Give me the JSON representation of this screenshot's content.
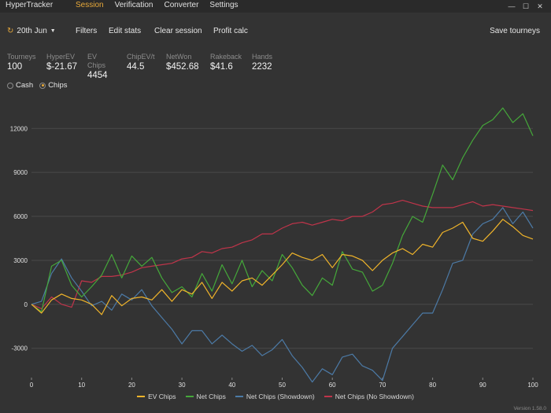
{
  "app": {
    "name": "HyperTracker",
    "version": "Version 1.58.0"
  },
  "menu": [
    {
      "label": "Session",
      "active": true
    },
    {
      "label": "Verification",
      "active": false
    },
    {
      "label": "Converter",
      "active": false
    },
    {
      "label": "Settings",
      "active": false
    }
  ],
  "window_controls": {
    "minimize": "—",
    "maximize": "☐",
    "close": "✕"
  },
  "toolbar": {
    "date": "20th Jun",
    "filters": "Filters",
    "edit_stats": "Edit stats",
    "clear_session": "Clear session",
    "profit_calc": "Profit calc",
    "save_tourneys": "Save tourneys"
  },
  "stats": [
    {
      "label": "Tourneys",
      "value": "100"
    },
    {
      "label": "HyperEV",
      "value": "$-21.67"
    },
    {
      "label": "EV Chips",
      "value": "4454"
    },
    {
      "label": "ChipEV/t",
      "value": "44.5"
    },
    {
      "label": "NetWon",
      "value": "$452.68"
    },
    {
      "label": "Rakeback",
      "value": "$41.6"
    },
    {
      "label": "Hands",
      "value": "2232"
    }
  ],
  "mode": {
    "cash_label": "Cash",
    "chips_label": "Chips",
    "selected": "Chips"
  },
  "icons": {
    "refresh": "refresh-icon",
    "dropdown": "caret-down-icon"
  },
  "chart_data": {
    "type": "line",
    "xlim": [
      0,
      100
    ],
    "ylim": [
      -5000,
      14000
    ],
    "x_ticks": [
      0,
      10,
      20,
      30,
      40,
      50,
      60,
      70,
      80,
      90,
      100
    ],
    "y_ticks": [
      -3000,
      0,
      3000,
      6000,
      9000,
      12000
    ],
    "grid": "horizontal",
    "legend_position": "bottom",
    "series": [
      {
        "name": "EV Chips",
        "color": "#f0b42a",
        "x": [
          0,
          2,
          4,
          6,
          8,
          10,
          12,
          14,
          16,
          18,
          20,
          22,
          24,
          26,
          28,
          30,
          32,
          34,
          36,
          38,
          40,
          42,
          44,
          46,
          48,
          50,
          52,
          54,
          56,
          58,
          60,
          62,
          64,
          66,
          68,
          70,
          72,
          74,
          76,
          78,
          80,
          82,
          84,
          86,
          88,
          90,
          92,
          94,
          96,
          98,
          100
        ],
        "y": [
          0,
          -600,
          300,
          700,
          400,
          300,
          0,
          -700,
          600,
          -100,
          400,
          500,
          300,
          1000,
          200,
          1000,
          700,
          1500,
          400,
          1500,
          900,
          1600,
          1800,
          1300,
          2000,
          2700,
          3500,
          3200,
          3000,
          3400,
          2500,
          3400,
          3300,
          3000,
          2300,
          3000,
          3500,
          3800,
          3400,
          4100,
          3900,
          4900,
          5200,
          5600,
          4500,
          4300,
          5000,
          5800,
          5300,
          4700,
          4454
        ]
      },
      {
        "name": "Net Chips",
        "color": "#45a83a",
        "x": [
          0,
          2,
          4,
          6,
          8,
          10,
          12,
          14,
          16,
          18,
          20,
          22,
          24,
          26,
          28,
          30,
          32,
          34,
          36,
          38,
          40,
          42,
          44,
          46,
          48,
          50,
          52,
          54,
          56,
          58,
          60,
          62,
          64,
          66,
          68,
          70,
          72,
          74,
          76,
          78,
          80,
          82,
          84,
          86,
          88,
          90,
          92,
          94,
          96,
          98,
          100
        ],
        "y": [
          0,
          -500,
          2600,
          3000,
          1300,
          500,
          1200,
          2000,
          3400,
          1800,
          3300,
          2600,
          3200,
          1800,
          800,
          1200,
          500,
          2100,
          900,
          2700,
          1400,
          3000,
          1200,
          2300,
          1600,
          3400,
          2500,
          1300,
          600,
          1800,
          1300,
          3600,
          2400,
          2200,
          900,
          1300,
          2800,
          4700,
          6000,
          5600,
          7500,
          9500,
          8500,
          10000,
          11200,
          12200,
          12600,
          13400,
          12400,
          13000,
          11500
        ]
      },
      {
        "name": "Net Chips (Showdown)",
        "color": "#4c7aa6",
        "x": [
          0,
          2,
          4,
          6,
          8,
          10,
          12,
          14,
          16,
          18,
          20,
          22,
          24,
          26,
          28,
          30,
          32,
          34,
          36,
          38,
          40,
          42,
          44,
          46,
          48,
          50,
          52,
          54,
          56,
          58,
          60,
          62,
          64,
          66,
          68,
          70,
          72,
          74,
          76,
          78,
          80,
          82,
          84,
          86,
          88,
          90,
          92,
          94,
          96,
          98,
          100
        ],
        "y": [
          0,
          200,
          2100,
          3100,
          1800,
          900,
          -100,
          200,
          -400,
          700,
          300,
          1000,
          -100,
          -900,
          -1700,
          -2700,
          -1800,
          -1800,
          -2700,
          -2100,
          -2700,
          -3200,
          -2800,
          -3500,
          -3100,
          -2400,
          -3500,
          -4300,
          -5300,
          -4400,
          -4800,
          -3600,
          -3400,
          -4200,
          -4500,
          -5200,
          -3000,
          -2200,
          -1400,
          -600,
          -600,
          1000,
          2800,
          3000,
          4800,
          5500,
          5800,
          6600,
          5500,
          6300,
          5200
        ]
      },
      {
        "name": "Net Chips (No Showdown)",
        "color": "#c0344a",
        "x": [
          0,
          2,
          4,
          6,
          8,
          10,
          12,
          14,
          16,
          18,
          20,
          22,
          24,
          26,
          28,
          30,
          32,
          34,
          36,
          38,
          40,
          42,
          44,
          46,
          48,
          50,
          52,
          54,
          56,
          58,
          60,
          62,
          64,
          66,
          68,
          70,
          72,
          74,
          76,
          78,
          80,
          82,
          84,
          86,
          88,
          90,
          92,
          94,
          96,
          98,
          100
        ],
        "y": [
          0,
          -300,
          500,
          0,
          -200,
          1600,
          1500,
          1900,
          1900,
          2000,
          2200,
          2500,
          2600,
          2700,
          2800,
          3100,
          3200,
          3600,
          3500,
          3800,
          3900,
          4200,
          4400,
          4800,
          4800,
          5200,
          5500,
          5600,
          5400,
          5600,
          5800,
          5700,
          6000,
          6000,
          6300,
          6800,
          6900,
          7100,
          6900,
          6700,
          6600,
          6600,
          6600,
          6800,
          7000,
          6700,
          6800,
          6700,
          6600,
          6500,
          6400
        ]
      }
    ]
  }
}
